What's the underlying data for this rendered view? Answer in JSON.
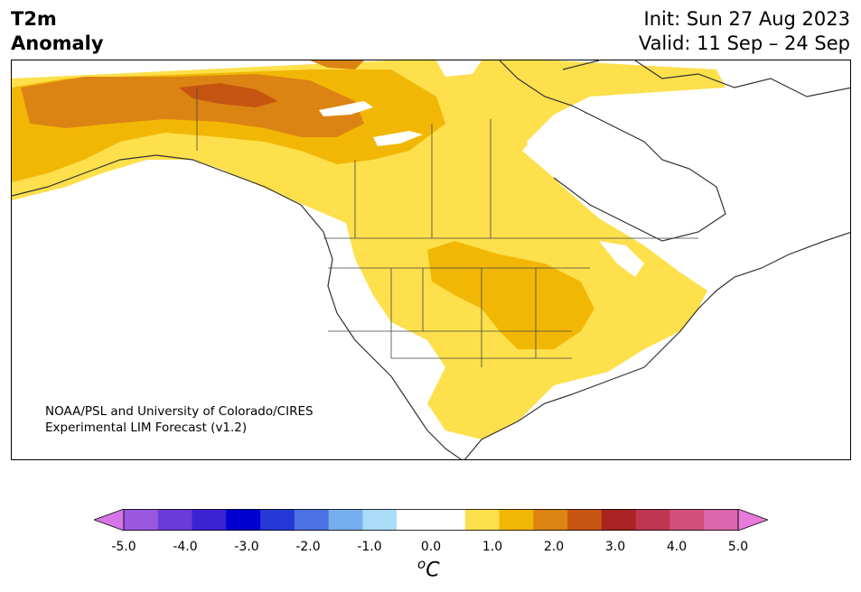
{
  "title": {
    "left_line1": "T2m",
    "left_line2": "Anomaly",
    "init": "Init: Sun 27 Aug 2023",
    "valid": "Valid: 11 Sep – 24 Sep"
  },
  "credit": {
    "line1": "NOAA/PSL and University of Colorado/CIRES",
    "line2": "Experimental LIM Forecast (v1.2)"
  },
  "colorbar": {
    "ticks": [
      "-5.0",
      "-4.0",
      "-3.0",
      "-2.0",
      "-1.0",
      "0.0",
      "1.0",
      "2.0",
      "3.0",
      "4.0",
      "5.0"
    ],
    "unit_base": "o",
    "unit": "C",
    "colors": [
      "#d676e8",
      "#9b57e0",
      "#6a3bd9",
      "#3b22d2",
      "#0000d0",
      "#2439d6",
      "#4b72e2",
      "#77afee",
      "#aadcf8",
      "#ffffff",
      "#ffffff",
      "#fde04b",
      "#f2b705",
      "#dc8413",
      "#c65512",
      "#a82321",
      "#be3652",
      "#d04f7a",
      "#dc66ae",
      "#e87ad9"
    ]
  }
}
